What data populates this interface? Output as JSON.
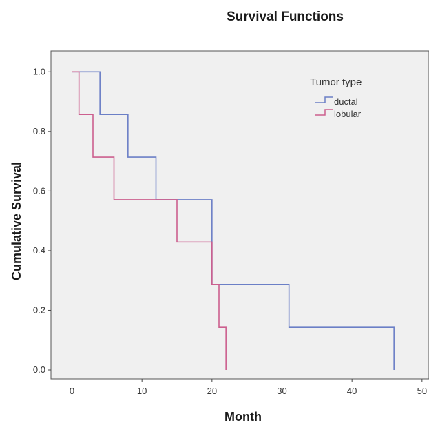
{
  "chart_data": {
    "type": "line",
    "subtype": "step",
    "title": "Survival Functions",
    "xlabel": "Month",
    "ylabel": "Cumulative Survival",
    "xlim": [
      -3,
      51
    ],
    "ylim": [
      -0.03,
      1.07
    ],
    "xticks": [
      0,
      10,
      20,
      30,
      40,
      50
    ],
    "yticks": [
      0.0,
      0.2,
      0.4,
      0.6,
      0.8,
      1.0
    ],
    "xtick_labels": [
      "0",
      "10",
      "20",
      "30",
      "40",
      "50"
    ],
    "ytick_labels": [
      "0.0",
      "0.2",
      "0.4",
      "0.6",
      "0.8",
      "1.0"
    ],
    "grid": false,
    "background": "#f0f0f0",
    "legend": {
      "title": "Tumor type",
      "placement": "top-right"
    },
    "series": [
      {
        "name": "ductal",
        "color": "#6b7fc6",
        "x": [
          0,
          4,
          8,
          12,
          20,
          31,
          46,
          46
        ],
        "y": [
          1.0,
          0.857,
          0.714,
          0.571,
          0.286,
          0.143,
          0.143,
          0.0
        ]
      },
      {
        "name": "lobular",
        "color": "#cc5f8e",
        "x": [
          0,
          1,
          3,
          6,
          15,
          20,
          21,
          22,
          22
        ],
        "y": [
          1.0,
          0.857,
          0.714,
          0.571,
          0.429,
          0.286,
          0.143,
          0.143,
          0.0
        ]
      }
    ]
  }
}
